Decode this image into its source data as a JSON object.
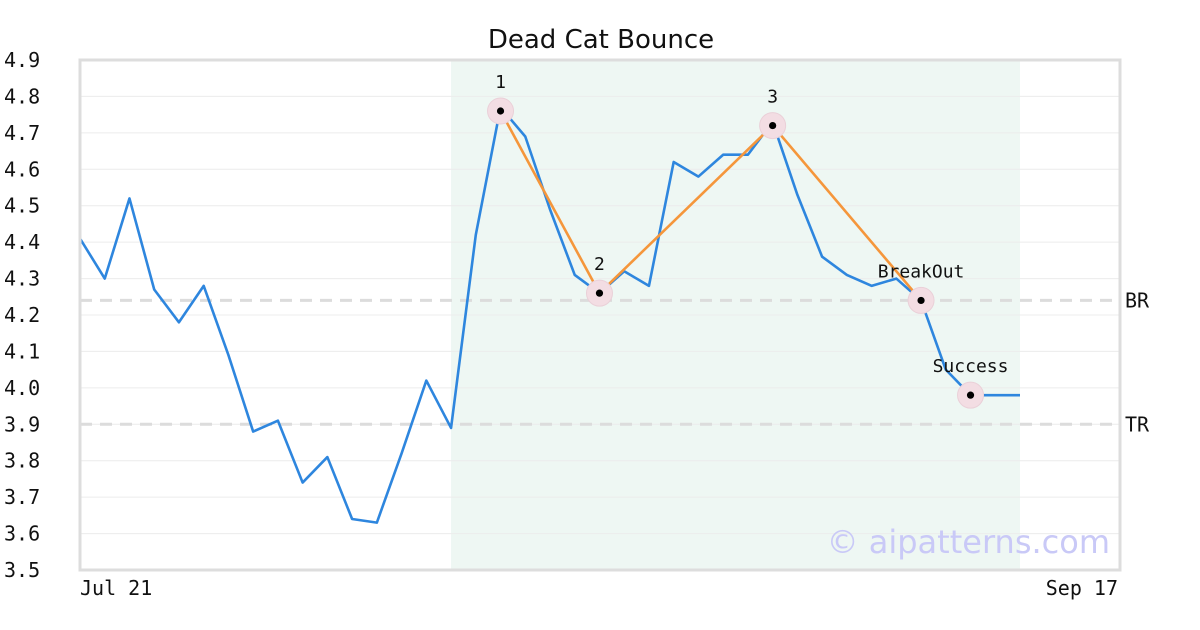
{
  "chart_data": {
    "type": "line",
    "title": "Dead Cat Bounce",
    "xlabel": "",
    "ylabel": "",
    "ylim": [
      3.5,
      4.9
    ],
    "y_ticks": [
      "3.5",
      "3.6",
      "3.7",
      "3.8",
      "3.9",
      "4.0",
      "4.1",
      "4.2",
      "4.3",
      "4.4",
      "4.5",
      "4.6",
      "4.7",
      "4.8",
      "4.9"
    ],
    "x_tick_labels": {
      "first": "Jul 21",
      "last": "Sep 17"
    },
    "grid": true,
    "series": [
      {
        "color": "#2e86de",
        "values": [
          4.41,
          4.3,
          4.52,
          4.27,
          4.18,
          4.28,
          4.09,
          3.88,
          3.91,
          3.74,
          3.81,
          3.64,
          3.63,
          3.82,
          4.02,
          3.89,
          4.42,
          4.77,
          4.69,
          4.49,
          4.31,
          4.26,
          4.32,
          4.28,
          4.62,
          4.58,
          4.64,
          4.64,
          4.73,
          4.53,
          4.36,
          4.31,
          4.28,
          4.3,
          4.24,
          4.05,
          3.98,
          3.98,
          3.98
        ]
      }
    ],
    "pattern": {
      "color": "#f5963b",
      "highlight_range": [
        15,
        38
      ],
      "highlight_color": "#eef7f3",
      "points": [
        {
          "label": "1",
          "index": 17,
          "value": 4.76
        },
        {
          "label": "2",
          "index": 21,
          "value": 4.26
        },
        {
          "label": "3",
          "index": 28,
          "value": 4.72
        },
        {
          "label": "BreakOut",
          "index": 34,
          "value": 4.24
        },
        {
          "label": "Success",
          "index": 36,
          "value": 3.98
        }
      ],
      "pattern_line_indices": [
        0,
        1,
        2,
        3
      ]
    },
    "reference_lines": [
      {
        "label": "BR",
        "value": 4.24
      },
      {
        "label": "TR",
        "value": 3.9
      }
    ],
    "watermark": "© aipatterns.com"
  }
}
